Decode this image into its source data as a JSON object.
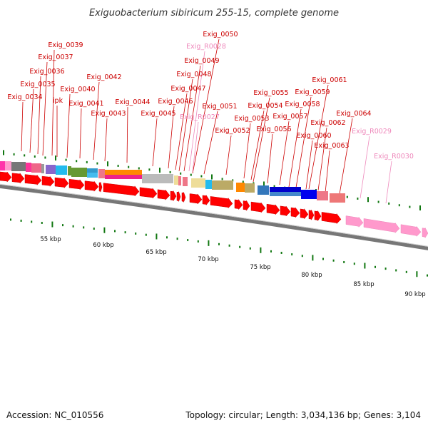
{
  "title": "Exiguobacterium sibiricum 255-15, complete genome",
  "accession": "Accession: NC_010556",
  "topology": "Topology: circular; Length: 3,034,136 bp; Genes: 3,104",
  "colors": {
    "cds": "#ff0000",
    "rna": "#ff99cc",
    "label_cds": "#cc0000",
    "label_rna": "#ee88bb",
    "tick": "#117711",
    "backbone": "#777777"
  },
  "scale_labels": [
    "55 kbp",
    "60 kbp",
    "65 kbp",
    "70 kbp",
    "75 kbp",
    "80 kbp",
    "85 kbp",
    "90 kbp"
  ],
  "gene_labels": [
    {
      "text": "Exig_0034",
      "kind": "cds"
    },
    {
      "text": "Exig_0035",
      "kind": "cds"
    },
    {
      "text": "Exig_0036",
      "kind": "cds"
    },
    {
      "text": "Exig_0037",
      "kind": "cds"
    },
    {
      "text": "Exig_0039",
      "kind": "cds"
    },
    {
      "text": "ipk",
      "kind": "cds"
    },
    {
      "text": "Exig_0040",
      "kind": "cds"
    },
    {
      "text": "Exig_0041",
      "kind": "cds"
    },
    {
      "text": "Exig_0042",
      "kind": "cds"
    },
    {
      "text": "Exig_0043",
      "kind": "cds"
    },
    {
      "text": "Exig_0044",
      "kind": "cds"
    },
    {
      "text": "Exig_0045",
      "kind": "cds"
    },
    {
      "text": "Exig_0046",
      "kind": "cds"
    },
    {
      "text": "Exig_0047",
      "kind": "cds"
    },
    {
      "text": "Exig_0048",
      "kind": "cds"
    },
    {
      "text": "Exig_0049",
      "kind": "cds"
    },
    {
      "text": "Exig_R0028",
      "kind": "rna"
    },
    {
      "text": "Exig_0050",
      "kind": "cds"
    },
    {
      "text": "Exig_R0027",
      "kind": "rna"
    },
    {
      "text": "Exig_0051",
      "kind": "cds"
    },
    {
      "text": "Exig_0052",
      "kind": "cds"
    },
    {
      "text": "Exig_0053",
      "kind": "cds"
    },
    {
      "text": "Exig_0054",
      "kind": "cds"
    },
    {
      "text": "Exig_0055",
      "kind": "cds"
    },
    {
      "text": "Exig_0056",
      "kind": "cds"
    },
    {
      "text": "Exig_0057",
      "kind": "cds"
    },
    {
      "text": "Exig_0058",
      "kind": "cds"
    },
    {
      "text": "Exig_0059",
      "kind": "cds"
    },
    {
      "text": "Exig_0060",
      "kind": "cds"
    },
    {
      "text": "Exig_0061",
      "kind": "cds"
    },
    {
      "text": "Exig_0062",
      "kind": "cds"
    },
    {
      "text": "Exig_0063",
      "kind": "cds"
    },
    {
      "text": "Exig_0064",
      "kind": "cds"
    },
    {
      "text": "Exig_R0029",
      "kind": "rna"
    },
    {
      "text": "Exig_R0030",
      "kind": "rna"
    }
  ]
}
